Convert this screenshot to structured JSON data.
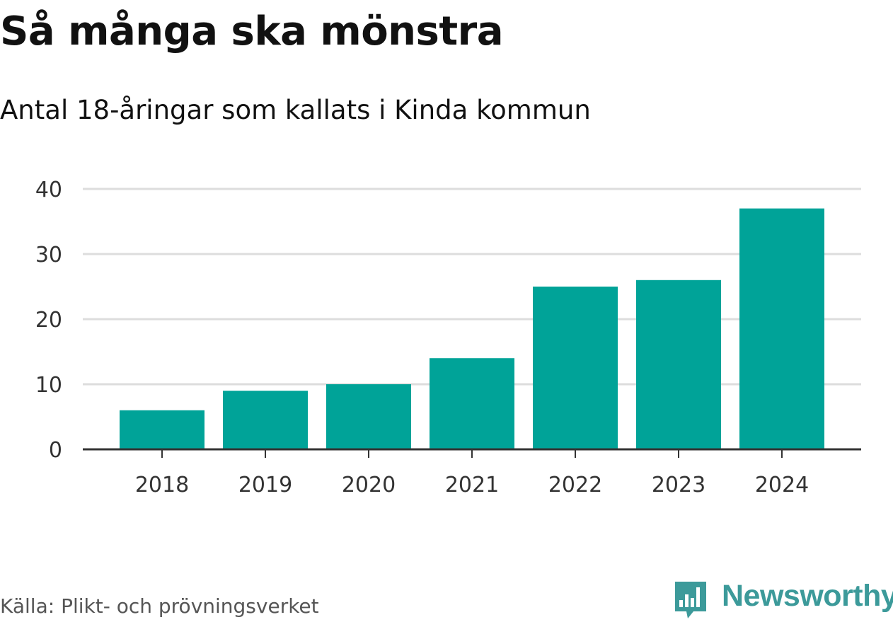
{
  "header": {
    "title": "Så många ska mönstra",
    "subtitle": "Antal 18-åringar som kallats i Kinda kommun"
  },
  "footer": {
    "source": "Källa: Plikt- och prövningsverket",
    "brand": "Newsworthy",
    "brand_icon": "bar-chart-logo-icon"
  },
  "colors": {
    "bar": "#00a398",
    "grid": "#dddddd",
    "axis": "#333333",
    "brand": "#3c9a9a"
  },
  "chart_data": {
    "type": "bar",
    "title": "Så många ska mönstra",
    "subtitle": "Antal 18-åringar som kallats i Kinda kommun",
    "xlabel": "",
    "ylabel": "",
    "categories": [
      "2018",
      "2019",
      "2020",
      "2021",
      "2022",
      "2023",
      "2024"
    ],
    "values": [
      6,
      9,
      10,
      14,
      25,
      26,
      37
    ],
    "ylim": [
      0,
      40
    ],
    "yticks": [
      "0",
      "10",
      "20",
      "30",
      "40"
    ],
    "grid": true,
    "legend": "none"
  }
}
